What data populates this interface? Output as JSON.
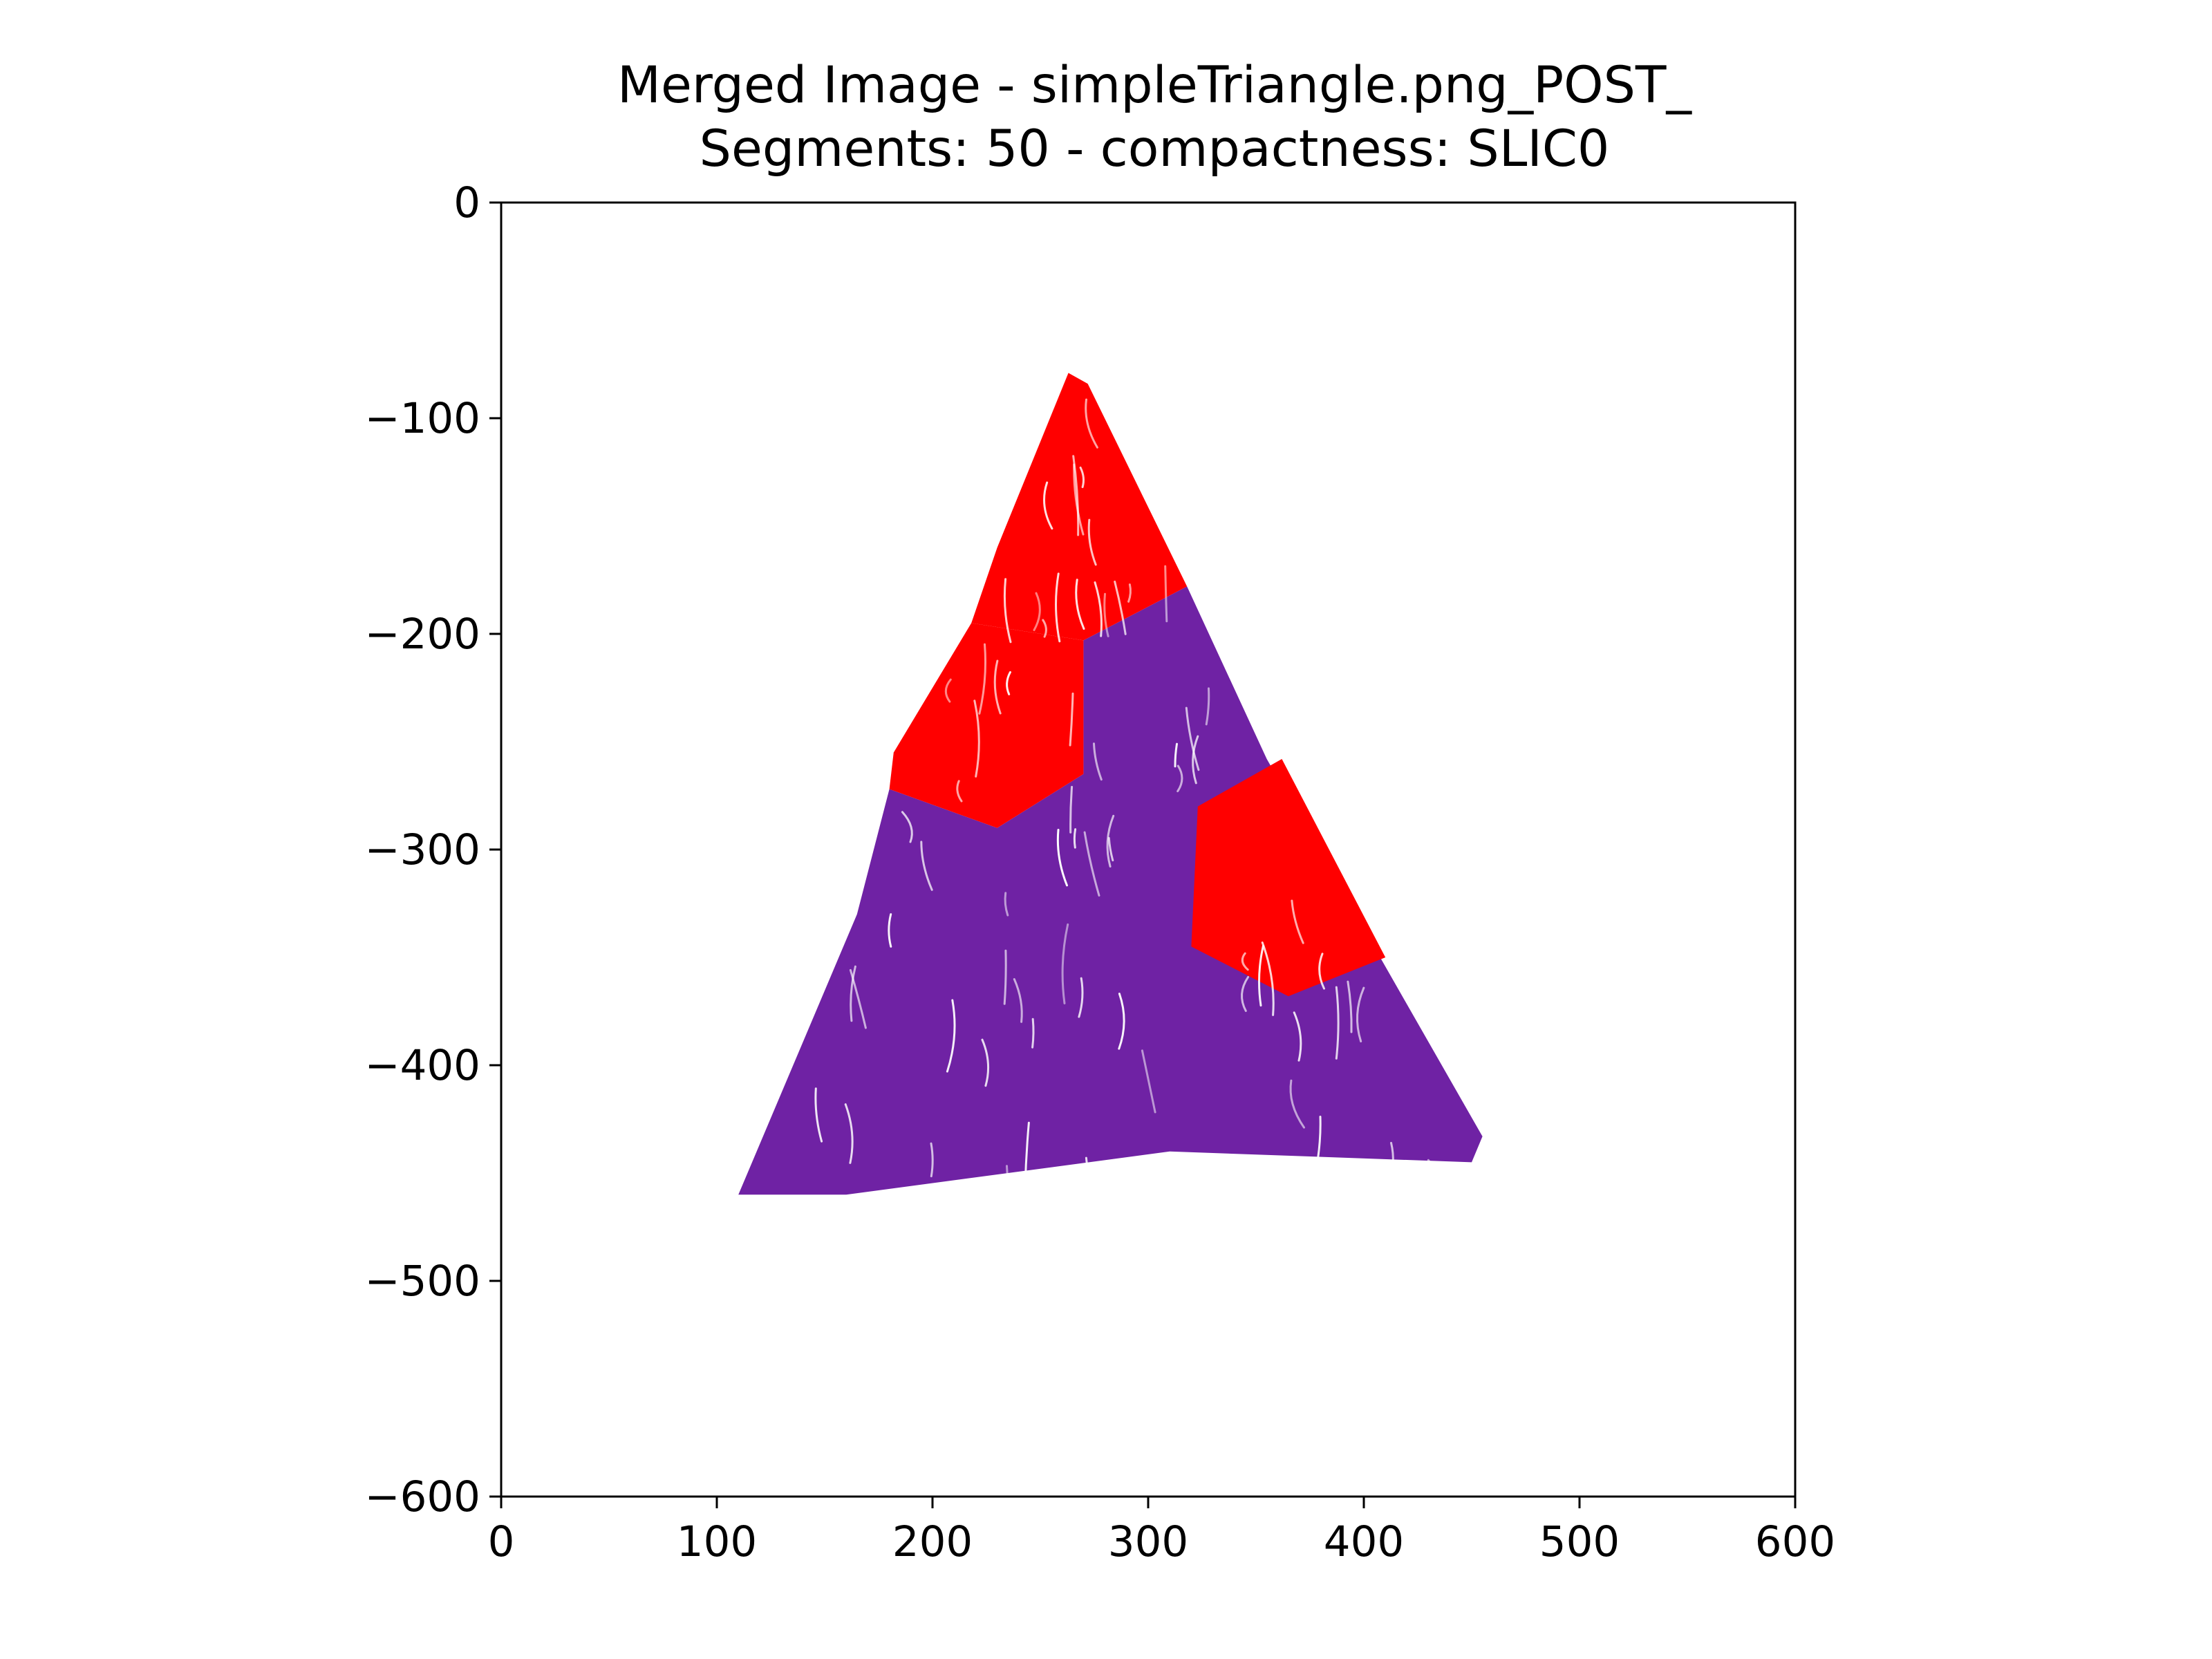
{
  "chart_data": {
    "type": "area",
    "title": "Merged Image - simpleTriangle.png_POST_",
    "subtitle": "Segments: 50 - compactness: SLIC0",
    "xlim": [
      0,
      600
    ],
    "ylim": [
      -600,
      0
    ],
    "x_ticks": [
      0,
      100,
      200,
      300,
      400,
      500,
      600
    ],
    "y_ticks": [
      0,
      -100,
      -200,
      -300,
      -400,
      -500,
      -600
    ],
    "x_tick_labels": [
      "0",
      "100",
      "200",
      "300",
      "400",
      "500",
      "600"
    ],
    "y_tick_labels": [
      "0",
      "−100",
      "−200",
      "−300",
      "−400",
      "−500",
      "−600"
    ],
    "grid": false,
    "colors": {
      "red": "#ff0000",
      "purple": "#6f22a4"
    },
    "regions": [
      {
        "color": "purple",
        "points": [
          [
            110,
            -460
          ],
          [
            165,
            -330
          ],
          [
            180,
            -272
          ],
          [
            230,
            -290
          ],
          [
            270,
            -265
          ],
          [
            270,
            -203
          ],
          [
            318,
            -178
          ],
          [
            355,
            -258
          ],
          [
            455,
            -433
          ],
          [
            450,
            -445
          ],
          [
            310,
            -440
          ],
          [
            235,
            -450
          ],
          [
            160,
            -460
          ]
        ]
      },
      {
        "color": "red",
        "points": [
          [
            263,
            -79
          ],
          [
            272,
            -84
          ],
          [
            318,
            -178
          ],
          [
            270,
            -203
          ],
          [
            218,
            -195
          ],
          [
            230,
            -160
          ]
        ]
      },
      {
        "color": "red",
        "points": [
          [
            218,
            -195
          ],
          [
            270,
            -203
          ],
          [
            270,
            -265
          ],
          [
            230,
            -290
          ],
          [
            180,
            -272
          ],
          [
            182,
            -255
          ]
        ]
      },
      {
        "color": "red",
        "points": [
          [
            323,
            -280
          ],
          [
            362,
            -258
          ],
          [
            410,
            -350
          ],
          [
            365,
            -368
          ],
          [
            320,
            -345
          ]
        ]
      }
    ]
  }
}
